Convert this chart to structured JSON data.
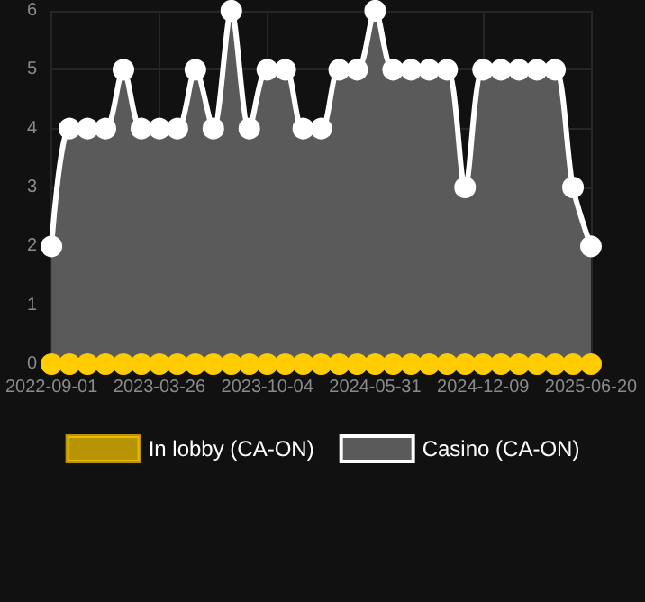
{
  "chart_data": {
    "type": "area",
    "categories": [
      "2022-09-01",
      null,
      null,
      null,
      null,
      null,
      "2023-03-26",
      null,
      null,
      null,
      null,
      null,
      "2023-10-04",
      null,
      null,
      null,
      null,
      null,
      "2024-05-31",
      null,
      null,
      null,
      null,
      null,
      "2024-12-09",
      null,
      null,
      null,
      null,
      null,
      "2025-06-20"
    ],
    "series": [
      {
        "name": "In lobby (CA-ON)",
        "type": "line",
        "color": "#ffcc00",
        "values": [
          0,
          0,
          0,
          0,
          0,
          0,
          0,
          0,
          0,
          0,
          0,
          0,
          0,
          0,
          0,
          0,
          0,
          0,
          0,
          0,
          0,
          0,
          0,
          0,
          0,
          0,
          0,
          0,
          0,
          0,
          0
        ]
      },
      {
        "name": "Casino (CA-ON)",
        "color": "#ffffff",
        "values": [
          2,
          4,
          4,
          4,
          5,
          4,
          4,
          4,
          5,
          4,
          6,
          4,
          5,
          5,
          4,
          4,
          5,
          5,
          6,
          5,
          5,
          5,
          5,
          3,
          5,
          5,
          5,
          5,
          5,
          3,
          2
        ]
      }
    ],
    "ylim": [
      0,
      6
    ],
    "yticks": [
      0,
      1,
      2,
      3,
      4,
      5,
      6
    ],
    "grid": true,
    "legend": "bottom",
    "marker": "circle"
  }
}
